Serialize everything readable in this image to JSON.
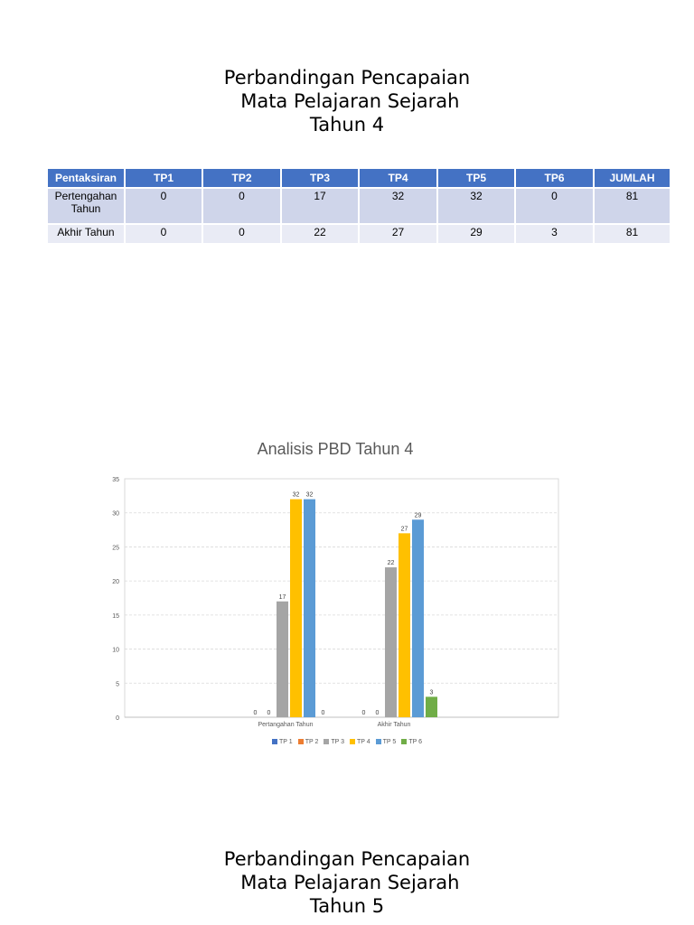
{
  "section1": {
    "title_lines": [
      "Perbandingan Pencapaian",
      " Mata Pelajaran Sejarah",
      "Tahun 4"
    ]
  },
  "table": {
    "headers": [
      "Pentaksiran",
      "TP1",
      "TP2",
      "TP3",
      "TP4",
      "TP5",
      "TP6",
      "JUMLAH"
    ],
    "rows": [
      [
        "Pertengahan Tahun",
        "0",
        "0",
        "17",
        "32",
        "32",
        "0",
        "81"
      ],
      [
        "Akhir Tahun",
        "0",
        "0",
        "22",
        "27",
        "29",
        "3",
        "81"
      ]
    ],
    "header_color": "#4472c4",
    "row_colors": [
      "#cfd5ea",
      "#e9ebf5"
    ]
  },
  "chart_data": {
    "type": "bar",
    "title": "Analisis PBD Tahun 4",
    "categories": [
      "Pertangahan Tahun",
      "Akhir Tahun"
    ],
    "series": [
      {
        "name": "TP 1",
        "values": [
          0,
          0
        ],
        "color": "#4472c4"
      },
      {
        "name": "TP 2",
        "values": [
          0,
          0
        ],
        "color": "#ed7d31"
      },
      {
        "name": "TP 3",
        "values": [
          17,
          22
        ],
        "color": "#a5a5a5"
      },
      {
        "name": "TP 4",
        "values": [
          32,
          27
        ],
        "color": "#ffc000"
      },
      {
        "name": "TP 5",
        "values": [
          32,
          29
        ],
        "color": "#5b9bd5"
      },
      {
        "name": "TP 6",
        "values": [
          0,
          3
        ],
        "color": "#70ad47"
      }
    ],
    "ylim": [
      0,
      35
    ],
    "yticks": [
      0,
      5,
      10,
      15,
      20,
      25,
      30,
      35
    ],
    "grid": true,
    "legend": "bottom",
    "data_labels": true
  },
  "section2": {
    "title_lines": [
      "Perbandingan Pencapaian",
      " Mata Pelajaran Sejarah",
      "Tahun 5"
    ]
  }
}
